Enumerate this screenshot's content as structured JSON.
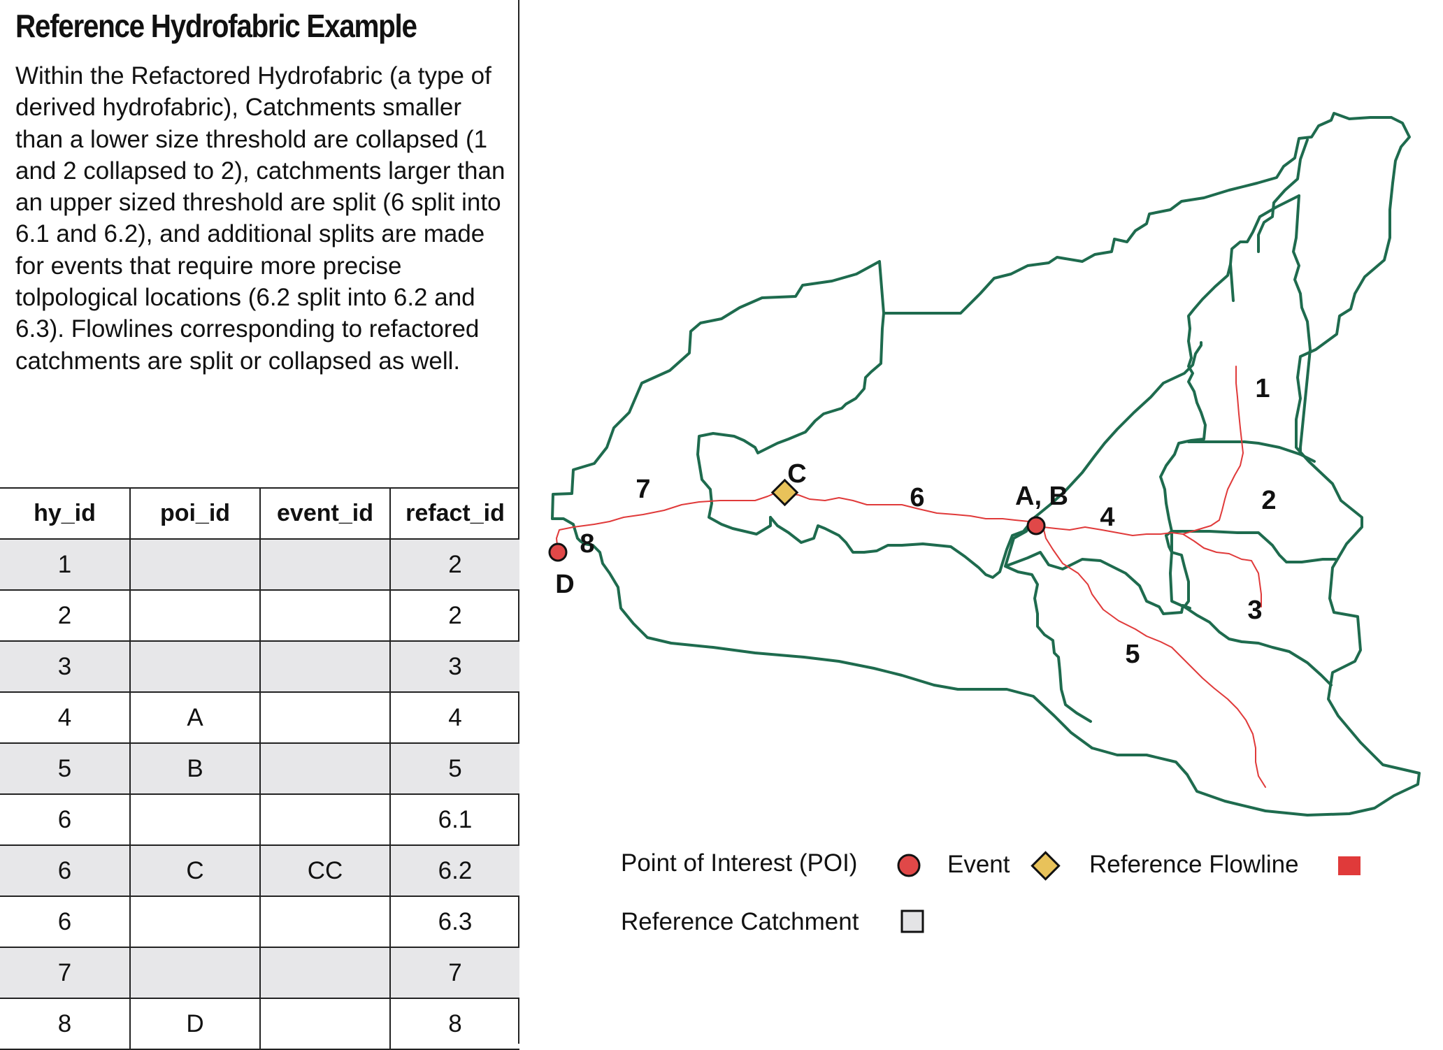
{
  "title": "Reference Hydrofabric Example",
  "description": "Within the Refactored Hydrofabric (a type of derived hydrofabric), Catchments smaller than a lower size threshold are collapsed (1 and 2 collapsed to 2), catchments larger than an upper sized threshold are split (6 split into 6.1 and 6.2), and additional splits are made for events that require more precise tolpological locations (6.2 split into 6.2 and 6.3).  Flowlines corresponding to refactored catchments are split or collapsed as well.",
  "table": {
    "headers": [
      "hy_id",
      "poi_id",
      "event_id",
      "refact_id"
    ],
    "rows": [
      [
        "1",
        "",
        "",
        "2"
      ],
      [
        "2",
        "",
        "",
        "2"
      ],
      [
        "3",
        "",
        "",
        "3"
      ],
      [
        "4",
        "A",
        "",
        "4"
      ],
      [
        "5",
        "B",
        "",
        "5"
      ],
      [
        "6",
        "",
        "",
        "6.1"
      ],
      [
        "6",
        "C",
        "CC",
        "6.2"
      ],
      [
        "6",
        "",
        "",
        "6.3"
      ],
      [
        "7",
        "",
        "",
        "7"
      ],
      [
        "8",
        "D",
        "",
        "8"
      ]
    ]
  },
  "map": {
    "catchment_labels": [
      "1",
      "2",
      "3",
      "4",
      "5",
      "6",
      "7",
      "8"
    ],
    "point_labels": {
      "ab": "A, B",
      "c": "C",
      "d": "D"
    },
    "colors": {
      "catchment_outline": "#1e6b4e",
      "flowline": "#e03a3a",
      "poi_fill": "#e04848",
      "event_fill": "#e8c25a",
      "catchment_swatch": "#e4e4e6"
    }
  },
  "legend": {
    "poi": "Point of Interest (POI)",
    "event": "Event",
    "flowline": "Reference Flowline",
    "catchment": "Reference Catchment"
  }
}
